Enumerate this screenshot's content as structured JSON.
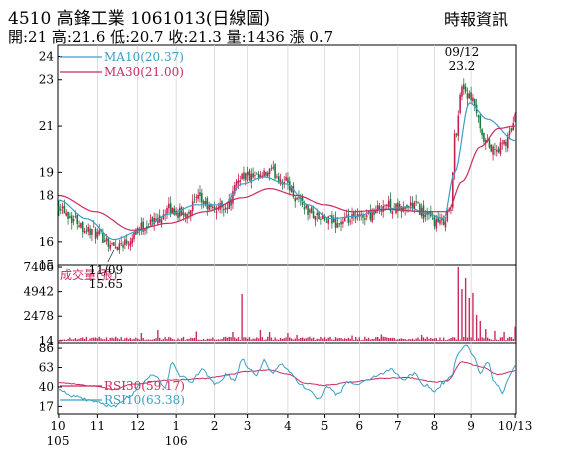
{
  "header": {
    "title": "4510  高鋒工業 1061013(日線圖)",
    "source": "時報資訊",
    "quote": "開:21 高:21.6 低:20.7 收:21.3 量:1436 漲 0.7"
  },
  "chart_data": [
    {
      "type": "candlestick",
      "panel": "price",
      "ylim": [
        15,
        24.5
      ],
      "yticks": [
        "24",
        "23",
        "21",
        "19",
        "18",
        "16",
        "15"
      ],
      "ytick_values": [
        24,
        23,
        21,
        19,
        18,
        16,
        15
      ],
      "legend": [
        {
          "label": "MA10(20.37)",
          "color": "#3a9fc4"
        },
        {
          "label": "MA30(21.00)",
          "color": "#cc2b5e"
        }
      ],
      "annotations": [
        {
          "date": "09/12",
          "value": "23.2",
          "x_index": 220,
          "y": 23.2
        },
        {
          "date": "11/09",
          "value": "15.65",
          "x_index": 30,
          "y": 15.65
        }
      ],
      "close_anchors": [
        [
          0,
          17.6
        ],
        [
          8,
          17.0
        ],
        [
          16,
          16.5
        ],
        [
          24,
          16.2
        ],
        [
          30,
          15.8
        ],
        [
          36,
          16.0
        ],
        [
          44,
          16.6
        ],
        [
          52,
          16.9
        ],
        [
          60,
          17.4
        ],
        [
          68,
          17.2
        ],
        [
          76,
          17.8
        ],
        [
          84,
          17.4
        ],
        [
          92,
          17.6
        ],
        [
          100,
          18.9
        ],
        [
          108,
          18.7
        ],
        [
          116,
          19.0
        ],
        [
          124,
          18.6
        ],
        [
          130,
          17.9
        ],
        [
          138,
          17.2
        ],
        [
          146,
          16.9
        ],
        [
          154,
          16.8
        ],
        [
          162,
          17.0
        ],
        [
          170,
          17.2
        ],
        [
          178,
          17.6
        ],
        [
          186,
          17.4
        ],
        [
          194,
          17.6
        ],
        [
          202,
          17.0
        ],
        [
          208,
          16.8
        ],
        [
          214,
          17.4
        ],
        [
          216,
          20.5
        ],
        [
          220,
          22.7
        ],
        [
          226,
          22.0
        ],
        [
          232,
          20.3
        ],
        [
          238,
          19.9
        ],
        [
          244,
          20.3
        ],
        [
          249,
          21.3
        ]
      ],
      "ma10_anchors": [
        [
          0,
          17.8
        ],
        [
          15,
          17.0
        ],
        [
          30,
          16.1
        ],
        [
          45,
          16.5
        ],
        [
          60,
          17.2
        ],
        [
          75,
          17.6
        ],
        [
          90,
          17.6
        ],
        [
          100,
          18.5
        ],
        [
          112,
          18.8
        ],
        [
          124,
          18.5
        ],
        [
          136,
          17.6
        ],
        [
          148,
          17.0
        ],
        [
          162,
          17.1
        ],
        [
          176,
          17.4
        ],
        [
          190,
          17.5
        ],
        [
          202,
          17.2
        ],
        [
          210,
          17.0
        ],
        [
          216,
          19.0
        ],
        [
          224,
          22.0
        ],
        [
          234,
          21.3
        ],
        [
          249,
          20.37
        ]
      ],
      "ma30_anchors": [
        [
          0,
          18.0
        ],
        [
          20,
          17.3
        ],
        [
          40,
          16.5
        ],
        [
          60,
          16.8
        ],
        [
          80,
          17.3
        ],
        [
          100,
          17.9
        ],
        [
          115,
          18.3
        ],
        [
          130,
          18.0
        ],
        [
          145,
          17.6
        ],
        [
          160,
          17.3
        ],
        [
          180,
          17.4
        ],
        [
          200,
          17.3
        ],
        [
          212,
          17.3
        ],
        [
          220,
          18.6
        ],
        [
          230,
          20.1
        ],
        [
          240,
          20.9
        ],
        [
          249,
          21.0
        ]
      ]
    },
    {
      "type": "bar",
      "panel": "volume",
      "title": "成交量(張)",
      "ylim": [
        0,
        7406
      ],
      "yticks": [
        "7406",
        "4942",
        "2478",
        "14"
      ],
      "ytick_values": [
        7406,
        4942,
        2478,
        14
      ],
      "color": "#cc2b5e",
      "spikes": [
        [
          45,
          800
        ],
        [
          54,
          1100
        ],
        [
          75,
          950
        ],
        [
          95,
          900
        ],
        [
          100,
          4700
        ],
        [
          110,
          1100
        ],
        [
          115,
          900
        ],
        [
          125,
          800
        ],
        [
          130,
          600
        ],
        [
          160,
          550
        ],
        [
          176,
          650
        ],
        [
          198,
          600
        ],
        [
          218,
          7406
        ],
        [
          220,
          5200
        ],
        [
          222,
          6300
        ],
        [
          224,
          4300
        ],
        [
          226,
          4800
        ],
        [
          228,
          2600
        ],
        [
          230,
          2000
        ],
        [
          233,
          1200
        ],
        [
          238,
          1000
        ],
        [
          243,
          900
        ],
        [
          249,
          1436
        ]
      ]
    },
    {
      "type": "line",
      "panel": "rsi",
      "yticks": [
        "86",
        "63",
        "40",
        "17"
      ],
      "ytick_values": [
        86,
        63,
        40,
        17
      ],
      "ylim": [
        8,
        92
      ],
      "series": [
        {
          "name": "RSI30(59.17)",
          "color": "#cc2b5e",
          "anchors": [
            [
              0,
              45
            ],
            [
              20,
              41
            ],
            [
              30,
              37
            ],
            [
              40,
              43
            ],
            [
              60,
              48
            ],
            [
              80,
              50
            ],
            [
              95,
              55
            ],
            [
              100,
              58
            ],
            [
              115,
              60
            ],
            [
              125,
              55
            ],
            [
              135,
              44
            ],
            [
              145,
              42
            ],
            [
              160,
              46
            ],
            [
              175,
              50
            ],
            [
              190,
              51
            ],
            [
              205,
              46
            ],
            [
              212,
              47
            ],
            [
              220,
              70
            ],
            [
              230,
              64
            ],
            [
              240,
              55
            ],
            [
              249,
              59.17
            ]
          ]
        },
        {
          "name": "RSI10(63.38)",
          "color": "#3a9fc4",
          "anchors": [
            [
              0,
              35
            ],
            [
              10,
              28
            ],
            [
              20,
              22
            ],
            [
              30,
              17
            ],
            [
              38,
              28
            ],
            [
              45,
              44
            ],
            [
              52,
              54
            ],
            [
              58,
              40
            ],
            [
              62,
              69
            ],
            [
              66,
              53
            ],
            [
              72,
              46
            ],
            [
              78,
              60
            ],
            [
              86,
              43
            ],
            [
              92,
              55
            ],
            [
              96,
              47
            ],
            [
              100,
              73
            ],
            [
              104,
              62
            ],
            [
              108,
              55
            ],
            [
              112,
              71
            ],
            [
              116,
              57
            ],
            [
              122,
              66
            ],
            [
              127,
              55
            ],
            [
              132,
              43
            ],
            [
              138,
              34
            ],
            [
              142,
              25
            ],
            [
              146,
              40
            ],
            [
              152,
              31
            ],
            [
              158,
              46
            ],
            [
              164,
              43
            ],
            [
              170,
              50
            ],
            [
              176,
              56
            ],
            [
              182,
              60
            ],
            [
              188,
              48
            ],
            [
              194,
              56
            ],
            [
              200,
              42
            ],
            [
              205,
              35
            ],
            [
              210,
              45
            ],
            [
              214,
              52
            ],
            [
              218,
              80
            ],
            [
              222,
              90
            ],
            [
              226,
              78
            ],
            [
              230,
              57
            ],
            [
              234,
              70
            ],
            [
              238,
              45
            ],
            [
              242,
              34
            ],
            [
              246,
              52
            ],
            [
              249,
              63.38
            ]
          ]
        }
      ]
    }
  ],
  "x_axis": {
    "ticks": [
      {
        "label": "10",
        "x_index": 0
      },
      {
        "label": "11",
        "x_index": 21
      },
      {
        "label": "12",
        "x_index": 43
      },
      {
        "label": "1",
        "x_index": 64
      },
      {
        "label": "2",
        "x_index": 85
      },
      {
        "label": "3",
        "x_index": 103
      },
      {
        "label": "4",
        "x_index": 125
      },
      {
        "label": "5",
        "x_index": 145
      },
      {
        "label": "6",
        "x_index": 164
      },
      {
        "label": "7",
        "x_index": 185
      },
      {
        "label": "8",
        "x_index": 205
      },
      {
        "label": "9",
        "x_index": 225
      },
      {
        "label": "10/13",
        "x_index": 249
      }
    ],
    "years": [
      {
        "label": "105",
        "x_index": 0
      },
      {
        "label": "106",
        "x_index": 64
      }
    ]
  }
}
